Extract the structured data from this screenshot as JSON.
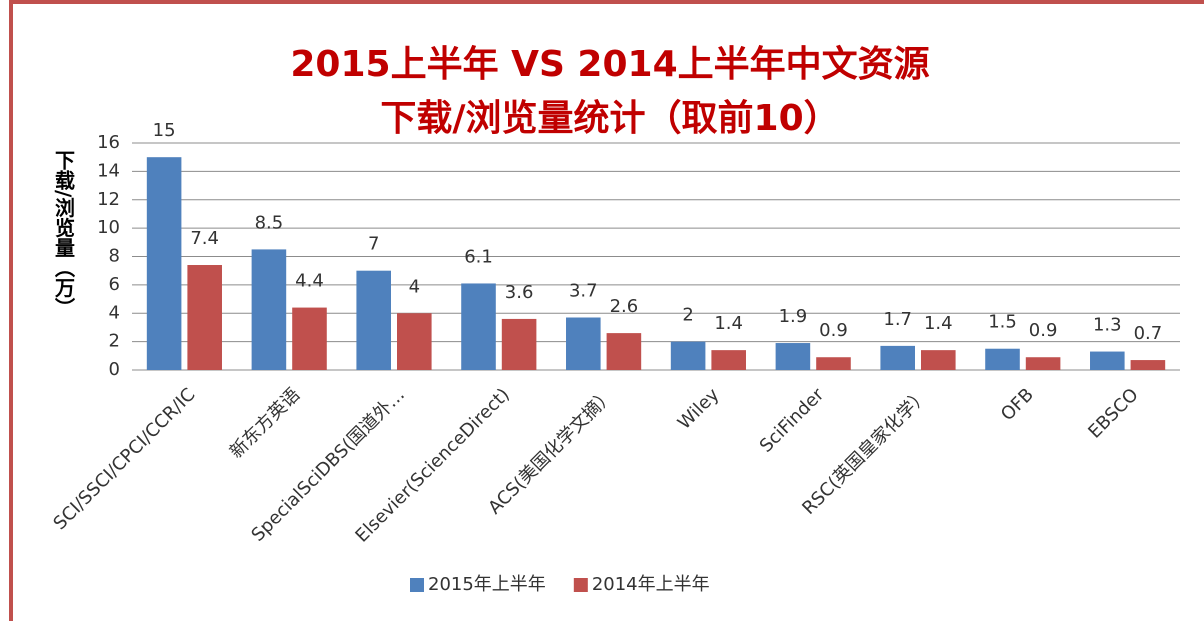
{
  "chart_data": {
    "type": "bar",
    "title": [
      "2015上半年  VS 2014上半年中文资源",
      "下载/浏览量统计（取前10）"
    ],
    "y_label": "下载/浏览量（万）",
    "categories": [
      "SCI/SSCI/CPCI/CCR/IC",
      "新东方英语",
      "SpecialSciDBS(国道外…",
      "Elsevier(ScienceDirect)",
      "ACS(美国化学文摘）",
      "Wiley",
      "SciFinder",
      "RSC(英国皇家化学）",
      "OFB",
      "EBSCO"
    ],
    "series": [
      {
        "name": "2015年上半年",
        "color": "#4f81bd",
        "values": [
          15,
          8.5,
          7,
          6.1,
          3.7,
          2,
          1.9,
          1.7,
          1.5,
          1.3
        ]
      },
      {
        "name": "2014年上半年",
        "color": "#c0504d",
        "values": [
          7.4,
          4.4,
          4,
          3.6,
          2.6,
          1.4,
          0.9,
          1.4,
          0.9,
          0.7
        ]
      }
    ],
    "ylim": [
      0,
      16
    ],
    "yticks": [
      0,
      2,
      4,
      6,
      8,
      10,
      12,
      14,
      16
    ],
    "grid": true,
    "legend": "bottom"
  }
}
